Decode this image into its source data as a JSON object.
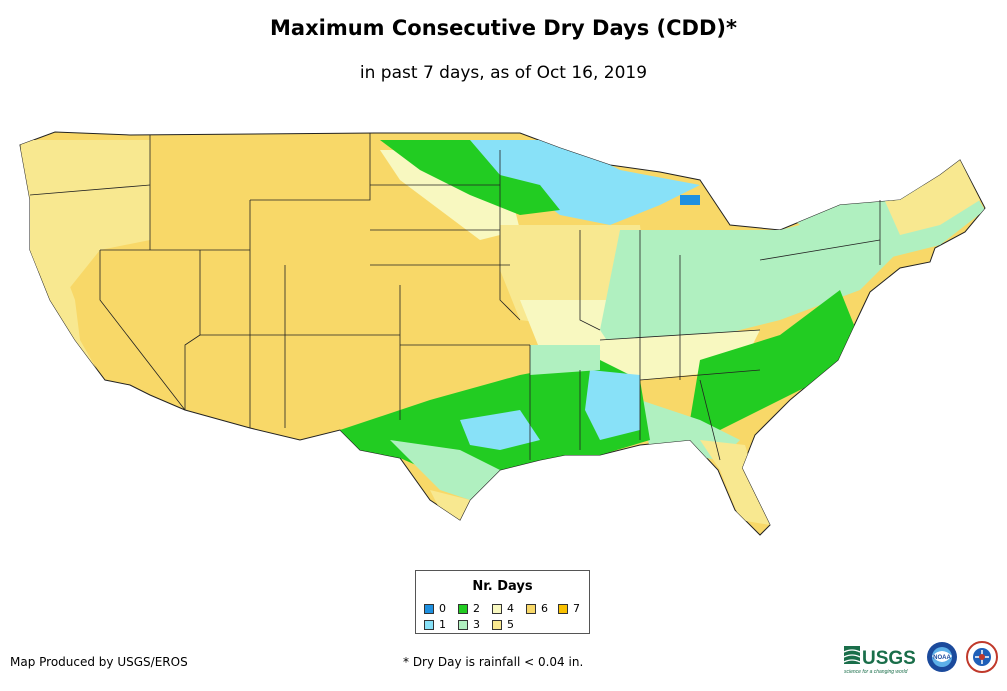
{
  "title": "Maximum Consecutive Dry Days (CDD)*",
  "subtitle": "in past 7 days, as of Oct 16, 2019",
  "legend": {
    "title": "Nr. Days",
    "items": [
      {
        "label": "0",
        "color": "#1e90e0"
      },
      {
        "label": "1",
        "color": "#88e1f8"
      },
      {
        "label": "2",
        "color": "#22cc22"
      },
      {
        "label": "3",
        "color": "#b0f0c0"
      },
      {
        "label": "4",
        "color": "#f8f8c0"
      },
      {
        "label": "5",
        "color": "#f8e890"
      },
      {
        "label": "6",
        "color": "#f8d868"
      },
      {
        "label": "7",
        "color": "#f8c000"
      }
    ]
  },
  "footer": {
    "credit": "Map Produced by USGS/EROS",
    "note": "* Dry Day is rainfall < 0.04 in."
  },
  "logos": {
    "usgs": "USGS",
    "usgs_tagline": "science for a changing world",
    "noaa": "NOAA"
  }
}
